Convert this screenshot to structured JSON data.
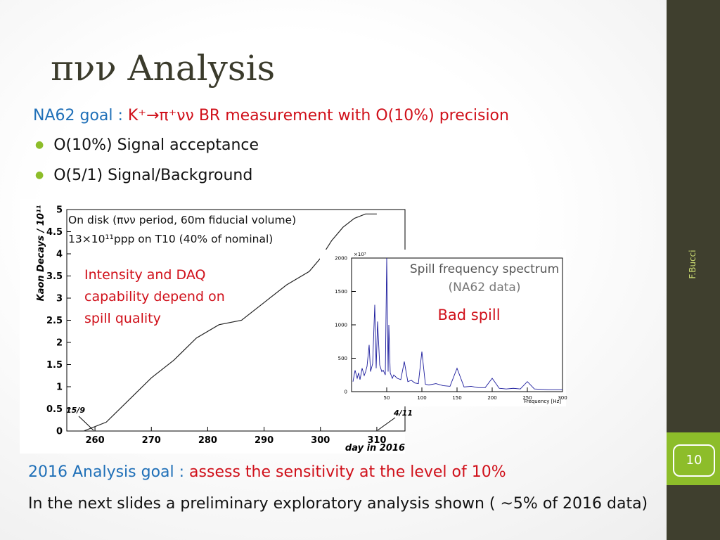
{
  "title": "πνν Analysis",
  "goal": {
    "label": "NA62 goal :",
    "text": "K⁺→π⁺νν BR measurement with O(10%) precision"
  },
  "bullets": [
    "O(10%) Signal acceptance",
    "O(5/1) Signal/Background"
  ],
  "sidebar": {
    "author": "F.Bucci",
    "page": "10"
  },
  "footer": {
    "label": "2016 Analysis goal :",
    "text": "assess the sensitivity at the level of 10%",
    "note": "In the next slides a preliminary exploratory analysis shown ( ~5% of 2016 data)"
  },
  "chart_data": [
    {
      "type": "line",
      "y_label": "Kaon Decays / 10¹¹",
      "x_label": "day in 2016",
      "annotations": [
        "On disk (πνν period, 60m fiducial volume)",
        "13×10¹¹ppp on T10 (40% of nominal)",
        "Intensity and DAQ capability depend on spill quality",
        "15/9",
        "4/11"
      ],
      "x": [
        258,
        262,
        266,
        270,
        274,
        278,
        282,
        286,
        290,
        294,
        298,
        300,
        302,
        304,
        306,
        308,
        310
      ],
      "values": [
        0,
        0.2,
        0.7,
        1.2,
        1.6,
        2.1,
        2.4,
        2.5,
        2.9,
        3.3,
        3.6,
        3.9,
        4.3,
        4.6,
        4.8,
        4.9,
        4.9
      ],
      "color": "#222222",
      "xlim": [
        255,
        315
      ],
      "ylim": [
        0,
        5
      ],
      "xticks": [
        260,
        270,
        280,
        290,
        300,
        310
      ],
      "yticks": [
        0,
        0.5,
        1,
        1.5,
        2,
        2.5,
        3,
        3.5,
        4,
        4.5,
        5
      ]
    },
    {
      "type": "line",
      "title": "Spill frequency spectrum",
      "subtitle": "(NA62 data)",
      "y_scale": "×10³",
      "x_label": "Frequency [Hz]",
      "annotations": [
        "Bad spill"
      ],
      "x": [
        2,
        5,
        8,
        10,
        12,
        15,
        18,
        20,
        22,
        25,
        27,
        30,
        33,
        35,
        37,
        40,
        43,
        45,
        48,
        50,
        52,
        53,
        55,
        58,
        60,
        65,
        70,
        75,
        80,
        85,
        90,
        95,
        100,
        105,
        110,
        120,
        130,
        140,
        150,
        160,
        170,
        180,
        190,
        200,
        210,
        220,
        230,
        240,
        250,
        260,
        270,
        280,
        290,
        300
      ],
      "values": [
        150,
        320,
        200,
        280,
        180,
        350,
        240,
        300,
        380,
        700,
        300,
        420,
        1300,
        350,
        1050,
        400,
        300,
        320,
        250,
        2000,
        300,
        1000,
        280,
        200,
        250,
        200,
        180,
        450,
        150,
        170,
        130,
        120,
        600,
        110,
        100,
        120,
        90,
        80,
        350,
        70,
        80,
        60,
        60,
        200,
        50,
        40,
        50,
        40,
        150,
        40,
        35,
        30,
        30,
        30
      ],
      "color": "#1a1a9c",
      "xlim": [
        0,
        300
      ],
      "ylim": [
        0,
        2000
      ],
      "xticks": [
        50,
        100,
        150,
        200,
        250,
        300
      ],
      "yticks": [
        0,
        500,
        1000,
        1500,
        2000
      ]
    }
  ]
}
